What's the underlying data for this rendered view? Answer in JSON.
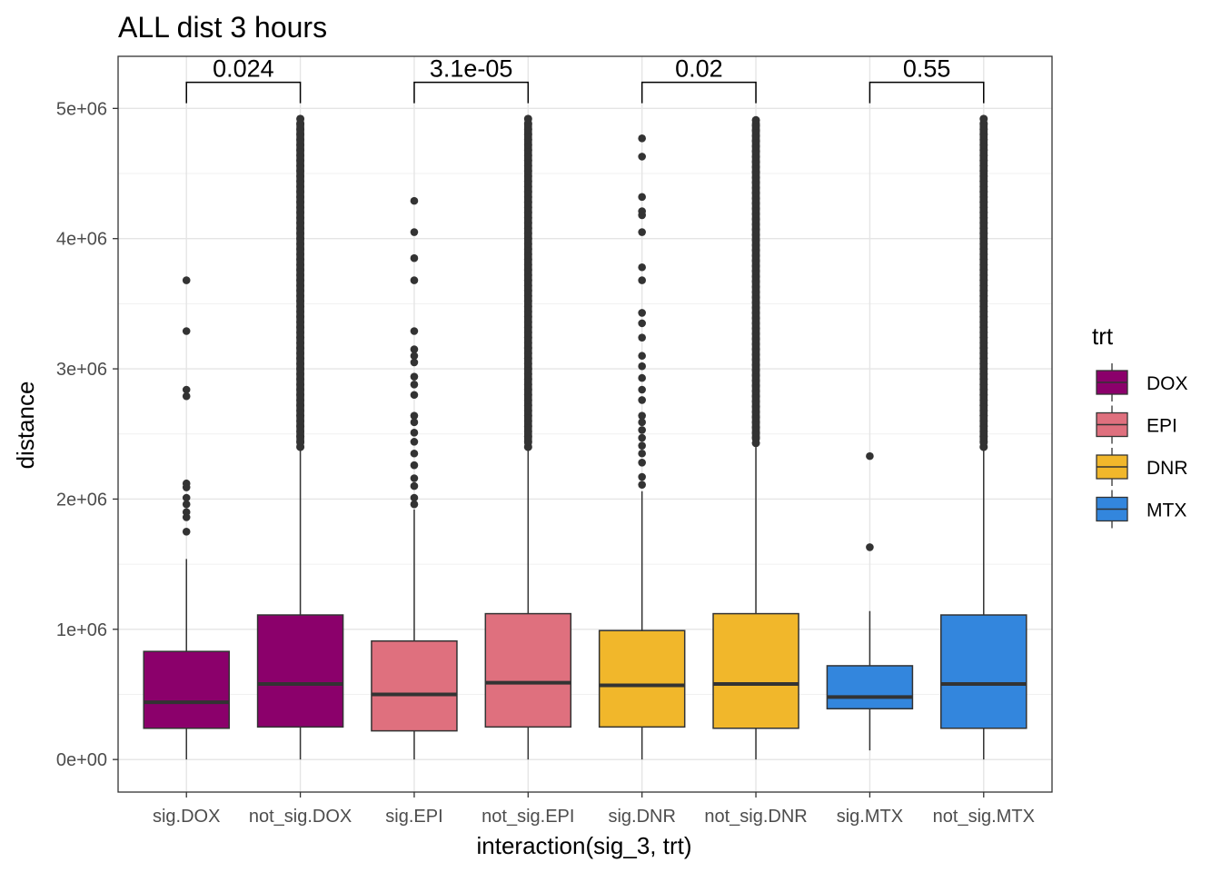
{
  "chart_data": {
    "type": "boxplot",
    "title": "ALL dist 3 hours",
    "xlabel": "interaction(sig_3, trt)",
    "ylabel": "distance",
    "ylim": [
      -250000,
      5400000
    ],
    "yticks": [
      0,
      1000000,
      2000000,
      3000000,
      4000000,
      5000000
    ],
    "ytick_labels": [
      "0e+00",
      "1e+06",
      "2e+06",
      "3e+06",
      "4e+06",
      "5e+06"
    ],
    "categories": [
      "sig.DOX",
      "not_sig.DOX",
      "sig.EPI",
      "not_sig.EPI",
      "sig.DNR",
      "not_sig.DNR",
      "sig.MTX",
      "not_sig.MTX"
    ],
    "grid": true,
    "legend": {
      "title": "trt",
      "position": "right",
      "entries": [
        {
          "label": "DOX",
          "color": "#8B006B"
        },
        {
          "label": "EPI",
          "color": "#DF707E"
        },
        {
          "label": "DNR",
          "color": "#F1B72B"
        },
        {
          "label": "MTX",
          "color": "#3386DD"
        }
      ]
    },
    "boxes": [
      {
        "category": "sig.DOX",
        "trt": "DOX",
        "min": 0,
        "q1": 240000,
        "median": 440000,
        "q3": 830000,
        "max": 1540000,
        "outliers": [
          1750000,
          1860000,
          1900000,
          1960000,
          2010000,
          2090000,
          2120000,
          2790000,
          2840000,
          3290000,
          3680000
        ]
      },
      {
        "category": "not_sig.DOX",
        "trt": "DOX",
        "min": 0,
        "q1": 250000,
        "median": 580000,
        "q3": 1110000,
        "max": 2370000,
        "outlier_band": [
          2400000,
          4920000
        ]
      },
      {
        "category": "sig.EPI",
        "trt": "EPI",
        "min": 0,
        "q1": 220000,
        "median": 500000,
        "q3": 910000,
        "max": 1920000,
        "outliers": [
          1960000,
          2010000,
          2100000,
          2160000,
          2260000,
          2350000,
          2440000,
          2510000,
          2590000,
          2640000,
          2800000,
          2880000,
          2940000,
          3050000,
          3100000,
          3150000,
          3290000,
          3680000,
          3850000,
          4050000,
          4290000
        ]
      },
      {
        "category": "not_sig.EPI",
        "trt": "EPI",
        "min": 0,
        "q1": 250000,
        "median": 590000,
        "q3": 1120000,
        "max": 2370000,
        "outlier_band": [
          2400000,
          4920000
        ]
      },
      {
        "category": "sig.DNR",
        "trt": "DNR",
        "min": 0,
        "q1": 250000,
        "median": 570000,
        "q3": 990000,
        "max": 2060000,
        "outliers": [
          2110000,
          2170000,
          2280000,
          2350000,
          2410000,
          2470000,
          2530000,
          2590000,
          2640000,
          2760000,
          2840000,
          2930000,
          3020000,
          3100000,
          3240000,
          3350000,
          3430000,
          3680000,
          3780000,
          4050000,
          4180000,
          4210000,
          4320000,
          4630000,
          4770000
        ]
      },
      {
        "category": "not_sig.DNR",
        "trt": "DNR",
        "min": 0,
        "q1": 240000,
        "median": 580000,
        "q3": 1120000,
        "max": 2400000,
        "outlier_band": [
          2430000,
          4920000
        ]
      },
      {
        "category": "sig.MTX",
        "trt": "MTX",
        "min": 70000,
        "q1": 390000,
        "median": 480000,
        "q3": 720000,
        "max": 1140000,
        "outliers": [
          1630000,
          2330000
        ]
      },
      {
        "category": "not_sig.MTX",
        "trt": "MTX",
        "min": 0,
        "q1": 240000,
        "median": 580000,
        "q3": 1110000,
        "max": 2370000,
        "outlier_band": [
          2400000,
          4920000
        ]
      }
    ],
    "comparisons": [
      {
        "pair": [
          "sig.DOX",
          "not_sig.DOX"
        ],
        "label": "0.024"
      },
      {
        "pair": [
          "sig.EPI",
          "not_sig.EPI"
        ],
        "label": "3.1e-05"
      },
      {
        "pair": [
          "sig.DNR",
          "not_sig.DNR"
        ],
        "label": "0.02"
      },
      {
        "pair": [
          "sig.MTX",
          "not_sig.MTX"
        ],
        "label": "0.55"
      }
    ],
    "comparison_level": 5200000
  }
}
